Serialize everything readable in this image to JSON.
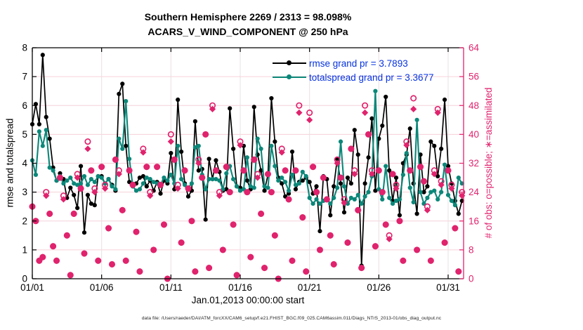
{
  "footer": {
    "text": "data file: /Users/raeder/DAI/ATM_forcXX/CAM6_setup/f.e21.FHIST_BGC.f09_025.CAM6assim.011/Diags_NTrS_2013-01/obs_diag_output.nc"
  },
  "colors": {
    "rmse_line": "#000000",
    "totalspread_line": "#0b8779",
    "obs_crimson": "#e0236d",
    "legend_text": "#0633e0",
    "grid_horizontal": "#f6d0da",
    "grid_vertical": "#e8e0e3",
    "axis_left": "#000000",
    "axis_right": "#e0236d"
  },
  "chart_data": {
    "type": "line",
    "title": "Southern Hemisphere 2269 / 2313 = 98.098%",
    "subtitle": "ACARS_V_WIND_COMPONENT @ 250 hPa",
    "x_start_label": "Jan.01,2013 00:00:00 start",
    "points_per_day": 4,
    "x_days_span": 31,
    "grid": true,
    "legend_position": "top-right-inside",
    "x_ticks": [
      {
        "label": "01/01",
        "day": 0
      },
      {
        "label": "01/06",
        "day": 5
      },
      {
        "label": "01/11",
        "day": 10
      },
      {
        "label": "01/16",
        "day": 15
      },
      {
        "label": "01/21",
        "day": 20
      },
      {
        "label": "01/26",
        "day": 25
      },
      {
        "label": "01/31",
        "day": 30
      }
    ],
    "left_axis": {
      "label": "rmse and totalspread",
      "range": [
        0,
        8
      ],
      "ticks": [
        0,
        1,
        2,
        3,
        4,
        5,
        6,
        7,
        8
      ]
    },
    "right_axis": {
      "label": "# of obs: o=possible; ∗=assimilated",
      "range": [
        0,
        64
      ],
      "ticks": [
        0,
        8,
        16,
        24,
        32,
        40,
        48,
        56,
        64
      ]
    },
    "series": [
      {
        "name": "rmse grand pr = 3.7893",
        "axis": "left",
        "color": "#000000",
        "marker": "filled-circle",
        "line": true,
        "values": [
          5.35,
          6.05,
          5.35,
          7.75,
          5.6,
          4.85,
          3.85,
          3.4,
          3.65,
          3.45,
          2.8,
          3.15,
          2.9,
          2.45,
          3.9,
          1.6,
          2.9,
          2.6,
          2.55,
          3.55,
          3.55,
          3.3,
          3.45,
          3.25,
          3.05,
          6.4,
          6.75,
          4.6,
          3.35,
          3.2,
          3.3,
          3.5,
          3.55,
          3.2,
          3.4,
          3.05,
          3.35,
          2.95,
          3.4,
          3.3,
          4.35,
          3.1,
          6.2,
          4.4,
          3.3,
          2.85,
          3.05,
          5.45,
          3.75,
          3.8,
          2.05,
          4.15,
          3.45,
          4.1,
          3.7,
          3.05,
          3.1,
          5.9,
          4.5,
          3.2,
          3.15,
          4.6,
          3.4,
          3.1,
          5.95,
          4.3,
          3.75,
          3.05,
          3.6,
          6.25,
          4.75,
          3.5,
          3.3,
          2.85,
          2.95,
          4.4,
          3.1,
          3.35,
          3.4,
          3.5,
          3.35,
          2.95,
          3.2,
          1.65,
          3.55,
          3.45,
          2.2,
          3.2,
          4.15,
          3.3,
          2.3,
          3.5,
          3.3,
          5.15,
          4.3,
          0.45,
          3.3,
          4.2,
          5.55,
          3.05,
          4.85,
          5.3,
          6.3,
          3.75,
          2.7,
          3.5,
          2.2,
          4.0,
          4.3,
          5.2,
          3.3,
          2.25,
          4.3,
          3.0,
          3.2,
          4.75,
          4.6,
          3.55,
          4.5,
          6.2,
          3.9,
          3.3,
          2.7,
          2.25,
          2.7
        ]
      },
      {
        "name": "totalspread grand pr = 3.3677",
        "axis": "left",
        "color": "#0b8779",
        "marker": "filled-circle",
        "line": true,
        "values": [
          4.1,
          3.6,
          5.1,
          4.6,
          5.15,
          3.85,
          3.75,
          3.4,
          3.55,
          3.3,
          3.4,
          3.5,
          3.3,
          3.25,
          3.3,
          3.55,
          3.25,
          3.45,
          3.35,
          3.55,
          3.5,
          3.3,
          3.45,
          3.2,
          3.1,
          4.85,
          4.5,
          6.15,
          4.15,
          3.2,
          3.05,
          3.1,
          3.3,
          3.5,
          3.45,
          3.35,
          3.3,
          3.25,
          3.5,
          3.4,
          3.6,
          3.3,
          4.6,
          3.45,
          3.25,
          3.15,
          3.3,
          4.55,
          4.6,
          3.6,
          3.1,
          3.45,
          3.45,
          3.45,
          3.4,
          3.1,
          3.65,
          3.9,
          3.45,
          3.2,
          3.05,
          3.1,
          4.2,
          3.2,
          3.15,
          4.85,
          4.5,
          3.2,
          3.15,
          4.6,
          3.9,
          3.4,
          3.5,
          3.35,
          3.05,
          3.6,
          3.25,
          3.3,
          3.7,
          3.55,
          2.8,
          2.6,
          2.75,
          2.6,
          2.7,
          2.75,
          2.6,
          2.8,
          3.15,
          4.75,
          3.2,
          2.6,
          2.8,
          2.75,
          2.9,
          2.6,
          2.85,
          3.0,
          3.55,
          6.5,
          3.1,
          2.75,
          3.9,
          2.8,
          2.6,
          2.7,
          2.75,
          3.6,
          4.35,
          3.15,
          2.65,
          5.5,
          3.0,
          2.6,
          2.8,
          3.0,
          3.05,
          2.75,
          3.0,
          3.95,
          2.9,
          2.7,
          2.55,
          3.5,
          3.3
        ]
      },
      {
        "name": "# of obs possible",
        "axis": "right",
        "color": "#e0236d",
        "marker": "open-circle",
        "line": false,
        "values": [
          20,
          16,
          5,
          6,
          24,
          18,
          9,
          5,
          28,
          23,
          12,
          1,
          18,
          29,
          25,
          7,
          38,
          30,
          25,
          5,
          31,
          26,
          14,
          4,
          33,
          30,
          19,
          5,
          30,
          26,
          13,
          2,
          36,
          31,
          24,
          8,
          31,
          26,
          15,
          0,
          40,
          33,
          26,
          10,
          30,
          25,
          16,
          2,
          33,
          28,
          40,
          3,
          48,
          30,
          24,
          8,
          31,
          24,
          15,
          1,
          38,
          30,
          24,
          6,
          33,
          29,
          18,
          3,
          29,
          24,
          12,
          0,
          36,
          30,
          22,
          5,
          30,
          48,
          17,
          2,
          46,
          31,
          24,
          8,
          28,
          22,
          12,
          4,
          33,
          28,
          22,
          10,
          36,
          30,
          19,
          3,
          48,
          40,
          30,
          9,
          30,
          24,
          15,
          12,
          29,
          26,
          16,
          5,
          38,
          30,
          50,
          8,
          31,
          27,
          20,
          5,
          30,
          47,
          27,
          10,
          30,
          26,
          14,
          2,
          24
        ]
      },
      {
        "name": "# of obs assimilated",
        "axis": "right",
        "color": "#e0236d",
        "marker": "filled-diamond",
        "line": false,
        "values": [
          20,
          16,
          5,
          6,
          23,
          18,
          9,
          5,
          28,
          22,
          12,
          1,
          18,
          28,
          25,
          7,
          36,
          30,
          24,
          5,
          31,
          25,
          14,
          4,
          33,
          29,
          19,
          5,
          30,
          26,
          13,
          2,
          35,
          31,
          23,
          8,
          31,
          26,
          15,
          0,
          38,
          33,
          25,
          10,
          30,
          25,
          16,
          2,
          32,
          28,
          40,
          3,
          47,
          30,
          23,
          8,
          31,
          24,
          15,
          1,
          37,
          30,
          24,
          6,
          33,
          28,
          18,
          3,
          29,
          24,
          12,
          0,
          35,
          30,
          22,
          5,
          30,
          46,
          17,
          2,
          44,
          31,
          24,
          8,
          28,
          22,
          12,
          4,
          32,
          28,
          21,
          10,
          36,
          29,
          19,
          3,
          46,
          40,
          29,
          9,
          30,
          24,
          15,
          11,
          29,
          25,
          16,
          5,
          37,
          30,
          47,
          8,
          31,
          27,
          19,
          5,
          29,
          46,
          26,
          10,
          30,
          25,
          14,
          2,
          23
        ]
      }
    ]
  }
}
